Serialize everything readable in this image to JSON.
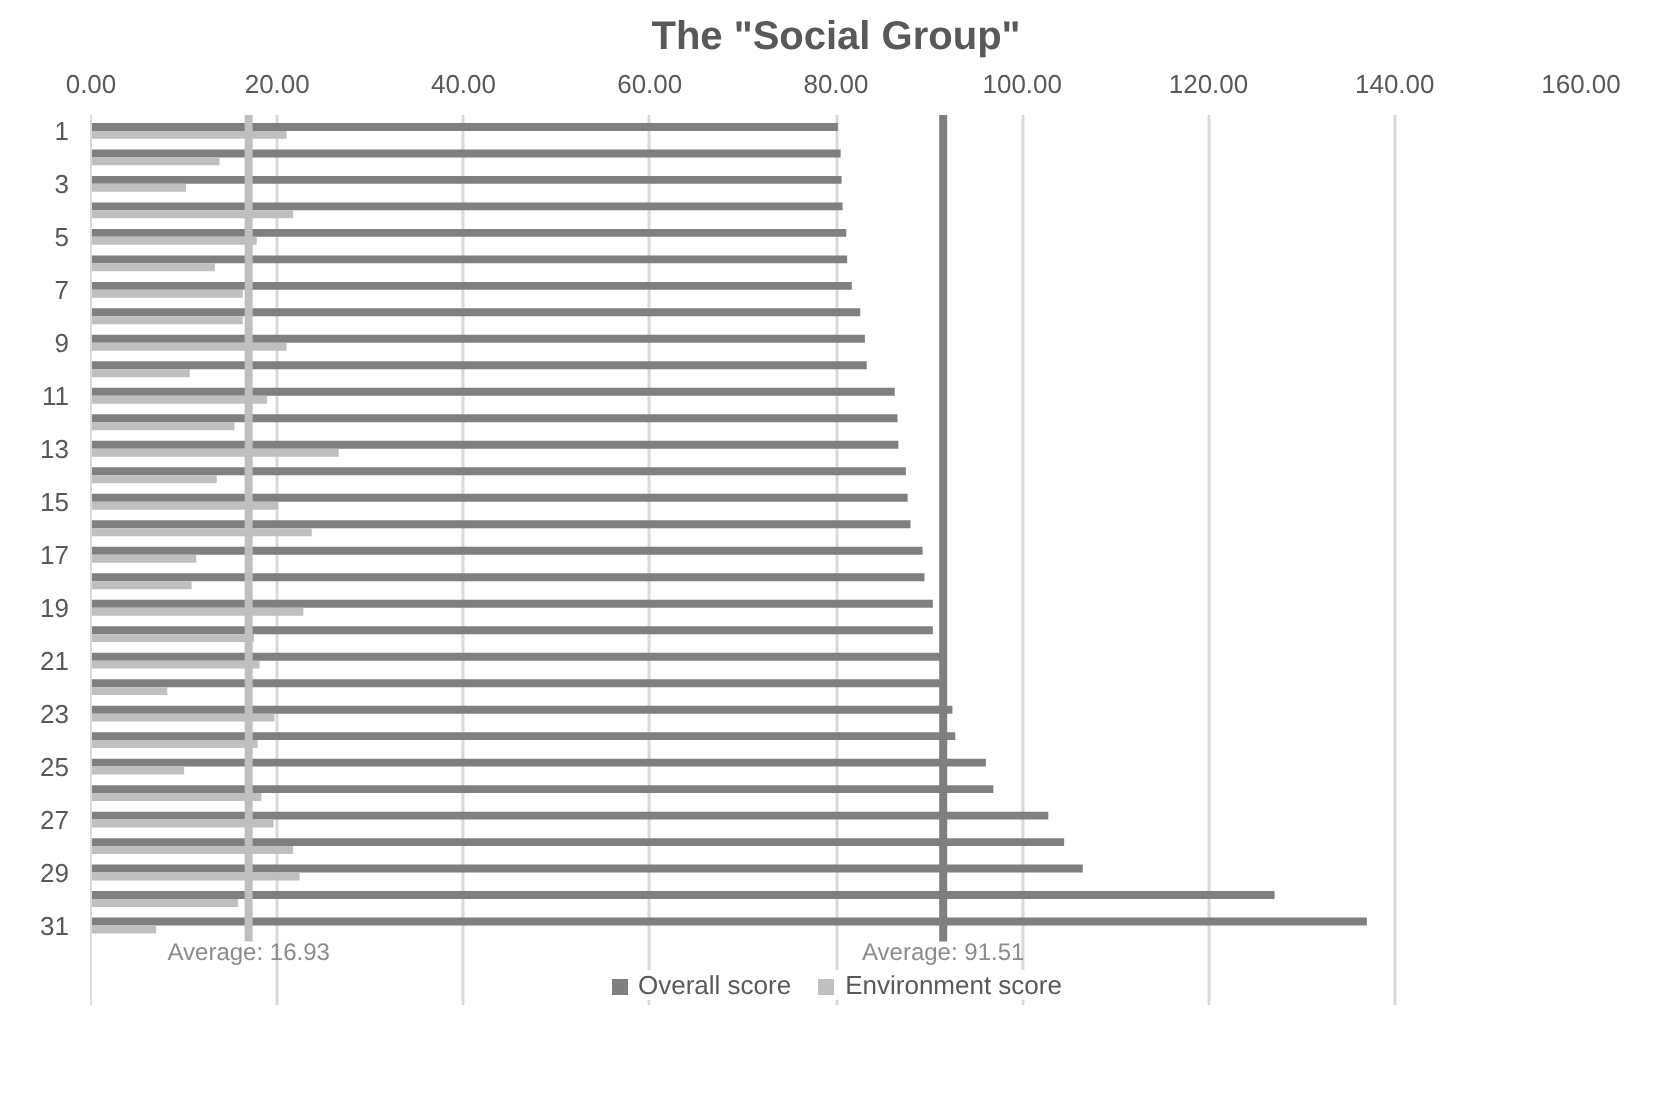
{
  "chart_data": {
    "type": "bar",
    "orientation": "horizontal",
    "title": "The \"Social Group\"",
    "categories": [
      "1",
      null,
      "3",
      null,
      "5",
      null,
      "7",
      null,
      "9",
      null,
      "11",
      null,
      "13",
      null,
      "15",
      null,
      "17",
      null,
      "19",
      null,
      "21",
      null,
      "23",
      null,
      "25",
      null,
      "27",
      null,
      "29",
      null,
      "31"
    ],
    "series": [
      {
        "name": "Overall score",
        "color": "#7f7f7f",
        "values": [
          80.2,
          80.5,
          80.6,
          80.7,
          81.1,
          81.2,
          81.7,
          82.6,
          83.1,
          83.3,
          86.3,
          86.6,
          86.7,
          87.5,
          87.7,
          88.0,
          89.3,
          89.5,
          90.4,
          90.4,
          91.4,
          91.9,
          92.5,
          92.8,
          96.1,
          96.9,
          102.8,
          104.5,
          106.5,
          127.1,
          137.0
        ]
      },
      {
        "name": "Environment score",
        "color": "#bfbfbf",
        "values": [
          21.0,
          13.8,
          10.2,
          21.7,
          17.8,
          13.3,
          16.3,
          16.3,
          21.0,
          10.6,
          18.9,
          15.4,
          26.6,
          13.5,
          20.1,
          23.7,
          11.3,
          10.8,
          22.8,
          17.5,
          18.1,
          8.2,
          19.7,
          17.9,
          10.0,
          18.3,
          19.6,
          21.7,
          22.4,
          15.8,
          7.0
        ]
      }
    ],
    "xlim": [
      0,
      160
    ],
    "xticks": [
      {
        "value": 0,
        "label": "0.00"
      },
      {
        "value": 20,
        "label": "20.00"
      },
      {
        "value": 40,
        "label": "40.00"
      },
      {
        "value": 60,
        "label": "60.00"
      },
      {
        "value": 80,
        "label": "80.00"
      },
      {
        "value": 100,
        "label": "100.00"
      },
      {
        "value": 120,
        "label": "120.00"
      },
      {
        "value": 140,
        "label": "140.00"
      },
      {
        "value": 160,
        "label": "160.00"
      }
    ],
    "ref_lines": [
      {
        "axis": "x",
        "value": 16.93,
        "label": "Average: 16.93",
        "color": "#bfbfbf"
      },
      {
        "axis": "x",
        "value": 91.51,
        "label": "Average: 91.51",
        "color": "#7f7f7f"
      }
    ],
    "grid": "x",
    "legend": "bottom"
  }
}
